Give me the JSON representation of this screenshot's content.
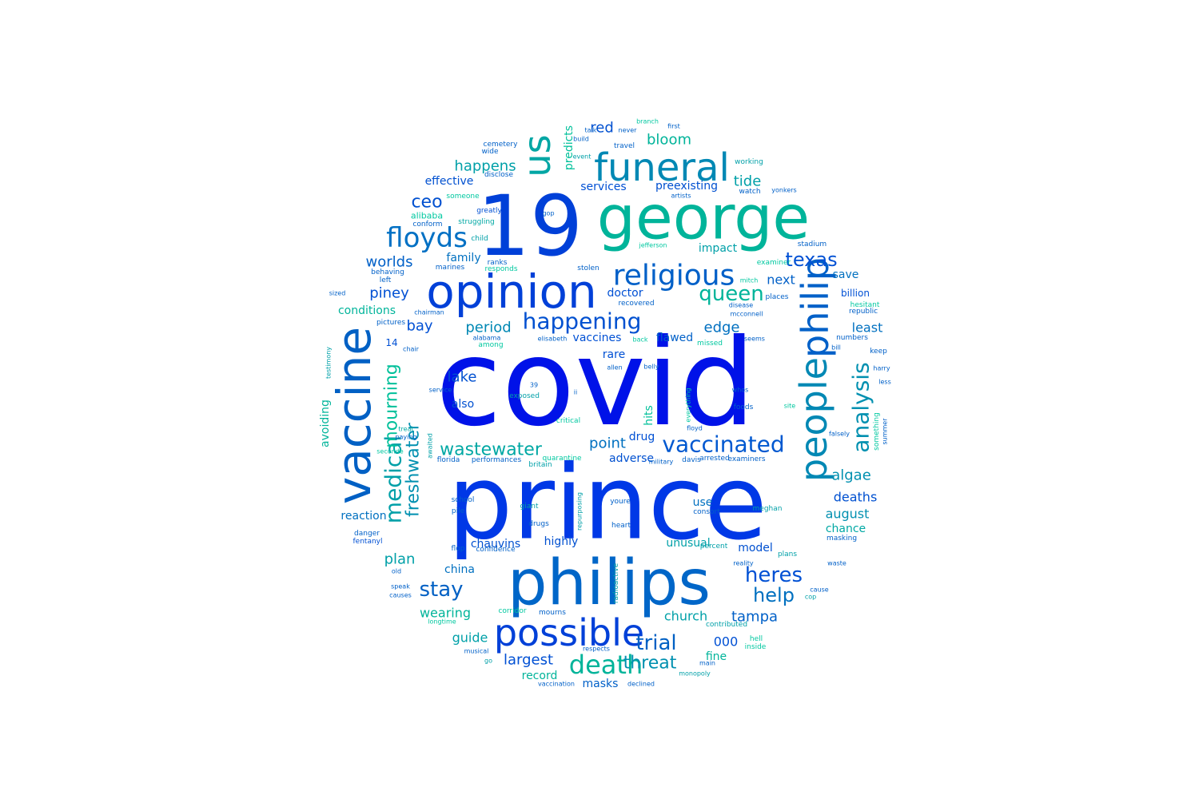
{
  "words": [
    {
      "text": "covid",
      "color": "#0012e8"
    },
    {
      "text": "prince",
      "color": "#0038e6"
    },
    {
      "text": "19",
      "color": "#0040d8"
    },
    {
      "text": "george",
      "color": "#00b49a"
    },
    {
      "text": "philips",
      "color": "#0066c8"
    },
    {
      "text": "opinion",
      "color": "#0040d8"
    },
    {
      "text": "vaccine",
      "color": "#0060c4"
    },
    {
      "text": "funeral",
      "color": "#0088b4"
    },
    {
      "text": "possible",
      "color": "#0040d8"
    },
    {
      "text": "people",
      "color": "#0088b4"
    },
    {
      "text": "philip",
      "color": "#0060c8"
    },
    {
      "text": "us",
      "color": "#00a6a4"
    },
    {
      "text": "religious",
      "color": "#0060c8"
    },
    {
      "text": "floyds",
      "color": "#0070c4"
    },
    {
      "text": "death",
      "color": "#00b49a"
    },
    {
      "text": "vaccinated",
      "color": "#0058d0"
    },
    {
      "text": "analysis",
      "color": "#0090b0"
    },
    {
      "text": "happening",
      "color": "#0050d0"
    },
    {
      "text": "queen",
      "color": "#00b49a"
    },
    {
      "text": "medical",
      "color": "#00a0a8"
    },
    {
      "text": "heres",
      "color": "#0050d4"
    },
    {
      "text": "wastewater",
      "color": "#00a8a4"
    },
    {
      "text": "stay",
      "color": "#0060c4"
    },
    {
      "text": "trial",
      "color": "#0060c4"
    },
    {
      "text": "texas",
      "color": "#0050d4"
    },
    {
      "text": "help",
      "color": "#0070c0"
    },
    {
      "text": "mourning",
      "color": "#00c09a"
    },
    {
      "text": "freshwater",
      "color": "#0090b0"
    },
    {
      "text": "threat",
      "color": "#0090b0"
    },
    {
      "text": "ceo",
      "color": "#0050d0"
    },
    {
      "text": "happens",
      "color": "#00a0a8"
    },
    {
      "text": "bloom",
      "color": "#00b49a"
    },
    {
      "text": "red",
      "color": "#0050d0"
    },
    {
      "text": "worlds",
      "color": "#0060c8"
    },
    {
      "text": "period",
      "color": "#0088b4"
    },
    {
      "text": "edge",
      "color": "#0070c0"
    },
    {
      "text": "lake",
      "color": "#0050d0"
    },
    {
      "text": "point",
      "color": "#0070c0"
    },
    {
      "text": "algae",
      "color": "#0090b0"
    },
    {
      "text": "largest",
      "color": "#0050d4"
    },
    {
      "text": "tampa",
      "color": "#0060c8"
    },
    {
      "text": "piney",
      "color": "#0050d4"
    },
    {
      "text": "tide",
      "color": "#00a0a8"
    },
    {
      "text": "deaths",
      "color": "#0050d0"
    },
    {
      "text": "august",
      "color": "#0090b0"
    },
    {
      "text": "plan",
      "color": "#00a0a8"
    },
    {
      "text": "bay",
      "color": "#0050d4"
    },
    {
      "text": "next",
      "color": "#0060c8"
    },
    {
      "text": "least",
      "color": "#0070c0"
    },
    {
      "text": "church",
      "color": "#00a0a8"
    },
    {
      "text": "wearing",
      "color": "#00b49a"
    },
    {
      "text": "guide",
      "color": "#00a0a8"
    },
    {
      "text": "masks",
      "color": "#0060c8"
    },
    {
      "text": "record",
      "color": "#00b49a"
    },
    {
      "text": "fine",
      "color": "#00b49a"
    },
    {
      "text": "000",
      "color": "#0050d4"
    },
    {
      "text": "model",
      "color": "#0050d0"
    },
    {
      "text": "chance",
      "color": "#00a8a4"
    },
    {
      "text": "use",
      "color": "#0070c0"
    },
    {
      "text": "highly",
      "color": "#0050d0"
    },
    {
      "text": "chauvins",
      "color": "#0050d0"
    },
    {
      "text": "china",
      "color": "#0070c0"
    },
    {
      "text": "reaction",
      "color": "#0070c0"
    },
    {
      "text": "unusual",
      "color": "#00a0a8"
    },
    {
      "text": "adverse",
      "color": "#0050d0"
    },
    {
      "text": "drug",
      "color": "#0050d4"
    },
    {
      "text": "rare",
      "color": "#0050d4"
    },
    {
      "text": "flawed",
      "color": "#0060c8"
    },
    {
      "text": "vaccines",
      "color": "#0050d4"
    },
    {
      "text": "doctor",
      "color": "#0050d4"
    },
    {
      "text": "impact",
      "color": "#00a0a8"
    },
    {
      "text": "save",
      "color": "#0070c0"
    },
    {
      "text": "billion",
      "color": "#0050d4"
    },
    {
      "text": "services",
      "color": "#0050d4"
    },
    {
      "text": "preexisting",
      "color": "#0050d0"
    },
    {
      "text": "effective",
      "color": "#0050d0"
    },
    {
      "text": "family",
      "color": "#0070c0"
    },
    {
      "text": "conditions",
      "color": "#00b49a"
    },
    {
      "text": "also",
      "color": "#0050d0"
    },
    {
      "text": "avoiding",
      "color": "#00b49a"
    },
    {
      "text": "predicts",
      "color": "#00c09a"
    },
    {
      "text": "hits",
      "color": "#00c09a"
    },
    {
      "text": "14",
      "color": "#0050d4"
    },
    {
      "text": "cemetery",
      "color": "#0060c8"
    },
    {
      "text": "wide",
      "color": "#0060c8"
    },
    {
      "text": "disclose",
      "color": "#0060c8"
    },
    {
      "text": "someone",
      "color": "#00c8a0"
    },
    {
      "text": "alibaba",
      "color": "#00c8a0"
    },
    {
      "text": "conform",
      "color": "#0060c8"
    },
    {
      "text": "greatly",
      "color": "#0050d4"
    },
    {
      "text": "struggling",
      "color": "#00a8a4"
    },
    {
      "text": "child",
      "color": "#00a0a8"
    },
    {
      "text": "ranks",
      "color": "#0060c8"
    },
    {
      "text": "responds",
      "color": "#00c8a0"
    },
    {
      "text": "behaving",
      "color": "#0060c8"
    },
    {
      "text": "left",
      "color": "#0060c8"
    },
    {
      "text": "sized",
      "color": "#0060c8"
    },
    {
      "text": "marines",
      "color": "#0060c8"
    },
    {
      "text": "pictures",
      "color": "#0060c8"
    },
    {
      "text": "chairman",
      "color": "#0060c8"
    },
    {
      "text": "among",
      "color": "#00c8a0"
    },
    {
      "text": "alabama",
      "color": "#0060c8"
    },
    {
      "text": "elisabeth",
      "color": "#0060c8"
    },
    {
      "text": "chair",
      "color": "#0060c8"
    },
    {
      "text": "testimony",
      "color": "#00a0a8"
    },
    {
      "text": "service",
      "color": "#0060c8"
    },
    {
      "text": "exposed",
      "color": "#00a0a8"
    },
    {
      "text": "treat",
      "color": "#00a8a4"
    },
    {
      "text": "paying",
      "color": "#0060c8"
    },
    {
      "text": "awaited",
      "color": "#00a0a8"
    },
    {
      "text": "florida",
      "color": "#0060c8"
    },
    {
      "text": "performances",
      "color": "#0060c8"
    },
    {
      "text": "quarantine",
      "color": "#00c8a0"
    },
    {
      "text": "military",
      "color": "#0060c8"
    },
    {
      "text": "davis",
      "color": "#0060c8"
    },
    {
      "text": "arrested",
      "color": "#0060c8"
    },
    {
      "text": "examiners",
      "color": "#0060c8"
    },
    {
      "text": "seconde",
      "color": "#00c8a0"
    },
    {
      "text": "britain",
      "color": "#00a0a8"
    },
    {
      "text": "school",
      "color": "#0060c8"
    },
    {
      "text": "giant",
      "color": "#00a0a8"
    },
    {
      "text": "pile",
      "color": "#0060c8"
    },
    {
      "text": "repurposing",
      "color": "#00a0a8"
    },
    {
      "text": "youre",
      "color": "#0060c8"
    },
    {
      "text": "consort",
      "color": "#0060c8"
    },
    {
      "text": "meghan",
      "color": "#00a0a8"
    },
    {
      "text": "danger",
      "color": "#0060c8"
    },
    {
      "text": "fentanyl",
      "color": "#0050d4"
    },
    {
      "text": "drugs",
      "color": "#0060c8"
    },
    {
      "text": "heart",
      "color": "#0060c8"
    },
    {
      "text": "flop",
      "color": "#0060c8"
    },
    {
      "text": "confidence",
      "color": "#0060c8"
    },
    {
      "text": "percent",
      "color": "#00a0a8"
    },
    {
      "text": "plans",
      "color": "#00a0a8"
    },
    {
      "text": "masking",
      "color": "#0060c8"
    },
    {
      "text": "old",
      "color": "#0060c8"
    },
    {
      "text": "reality",
      "color": "#0060c8"
    },
    {
      "text": "waste",
      "color": "#0060c8"
    },
    {
      "text": "radioactive",
      "color": "#00a0a8"
    },
    {
      "text": "speak",
      "color": "#0060c8"
    },
    {
      "text": "causes",
      "color": "#0060c8"
    },
    {
      "text": "cause",
      "color": "#0060c8"
    },
    {
      "text": "cop",
      "color": "#00a0a8"
    },
    {
      "text": "corridor",
      "color": "#00c8a0"
    },
    {
      "text": "mourns",
      "color": "#0060c8"
    },
    {
      "text": "longtime",
      "color": "#00c8a0"
    },
    {
      "text": "contributed",
      "color": "#00a0a8"
    },
    {
      "text": "hell",
      "color": "#00c8a0"
    },
    {
      "text": "inside",
      "color": "#00c8a0"
    },
    {
      "text": "musical",
      "color": "#0060c8"
    },
    {
      "text": "go",
      "color": "#00a0a8"
    },
    {
      "text": "respects",
      "color": "#0060c8"
    },
    {
      "text": "main",
      "color": "#0060c8"
    },
    {
      "text": "monopoly",
      "color": "#00a0a8"
    },
    {
      "text": "vaccination",
      "color": "#0060c8"
    },
    {
      "text": "declined",
      "color": "#0060c8"
    },
    {
      "text": "branch",
      "color": "#00c8a0"
    },
    {
      "text": "talk",
      "color": "#0060c8"
    },
    {
      "text": "build",
      "color": "#0060c8"
    },
    {
      "text": "event",
      "color": "#00a0a8"
    },
    {
      "text": "never",
      "color": "#0060c8"
    },
    {
      "text": "first",
      "color": "#0060c8"
    },
    {
      "text": "travel",
      "color": "#0060c8"
    },
    {
      "text": "working",
      "color": "#00a0a8"
    },
    {
      "text": "artists",
      "color": "#0060c8"
    },
    {
      "text": "watch",
      "color": "#0060c8"
    },
    {
      "text": "yonkers",
      "color": "#0060c8"
    },
    {
      "text": "gop",
      "color": "#0060c8"
    },
    {
      "text": "stadium",
      "color": "#0060c8"
    },
    {
      "text": "jefferson",
      "color": "#00c8a0"
    },
    {
      "text": "examiner",
      "color": "#00c8a0"
    },
    {
      "text": "stolen",
      "color": "#0060c8"
    },
    {
      "text": "mitch",
      "color": "#00c8a0"
    },
    {
      "text": "places",
      "color": "#0060c8"
    },
    {
      "text": "recovered",
      "color": "#0060c8"
    },
    {
      "text": "disease",
      "color": "#0060c8"
    },
    {
      "text": "mcconnell",
      "color": "#0060c8"
    },
    {
      "text": "hesitant",
      "color": "#00c8a0"
    },
    {
      "text": "republic",
      "color": "#0060c8"
    },
    {
      "text": "seems",
      "color": "#0060c8"
    },
    {
      "text": "numbers",
      "color": "#0060c8"
    },
    {
      "text": "bill",
      "color": "#0060c8"
    },
    {
      "text": "back",
      "color": "#00c8a0"
    },
    {
      "text": "missed",
      "color": "#00c8a0"
    },
    {
      "text": "keep",
      "color": "#0060c8"
    },
    {
      "text": "harry",
      "color": "#0060c8"
    },
    {
      "text": "allen",
      "color": "#0060c8"
    },
    {
      "text": "belly",
      "color": "#0060c8"
    },
    {
      "text": "whos",
      "color": "#0060c8"
    },
    {
      "text": "less",
      "color": "#0060c8"
    },
    {
      "text": "39",
      "color": "#0060c8"
    },
    {
      "text": "ii",
      "color": "#0060c8"
    },
    {
      "text": "everything",
      "color": "#00c8a0"
    },
    {
      "text": "foods",
      "color": "#0060c8"
    },
    {
      "text": "site",
      "color": "#00c8a0"
    },
    {
      "text": "critical",
      "color": "#00c8a0"
    },
    {
      "text": "floyd",
      "color": "#0060c8"
    },
    {
      "text": "falsely",
      "color": "#0060c8"
    },
    {
      "text": "something",
      "color": "#00c8a0"
    },
    {
      "text": "summer",
      "color": "#0060c8"
    }
  ]
}
